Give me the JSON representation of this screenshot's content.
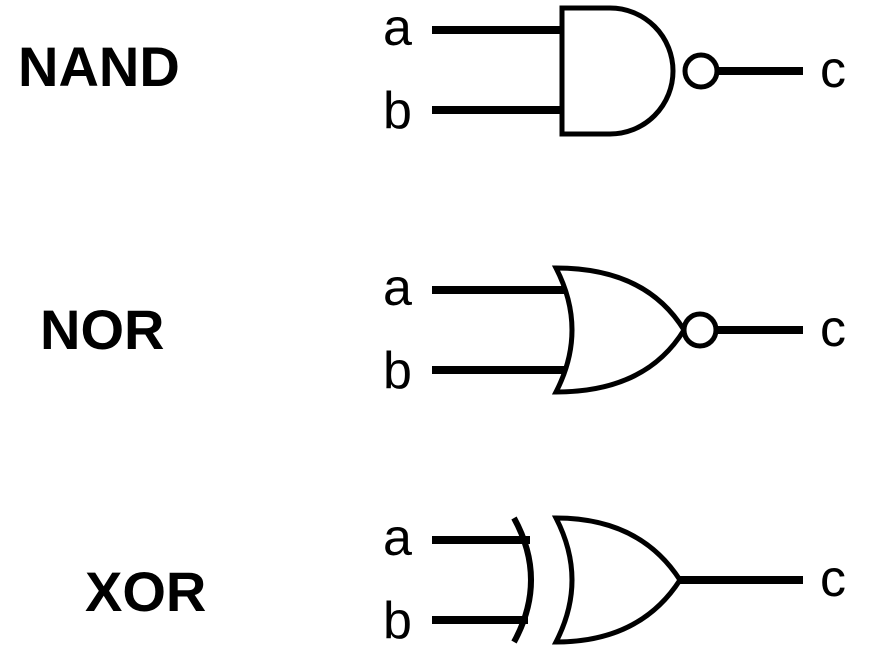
{
  "gates": [
    {
      "type": "NAND",
      "name": "NAND",
      "inputs": [
        "a",
        "b"
      ],
      "output": "c",
      "inverted_output": true
    },
    {
      "type": "NOR",
      "name": "NOR",
      "inputs": [
        "a",
        "b"
      ],
      "output": "c",
      "inverted_output": true
    },
    {
      "type": "XOR",
      "name": "XOR",
      "inputs": [
        "a",
        "b"
      ],
      "output": "c",
      "inverted_output": false
    }
  ]
}
